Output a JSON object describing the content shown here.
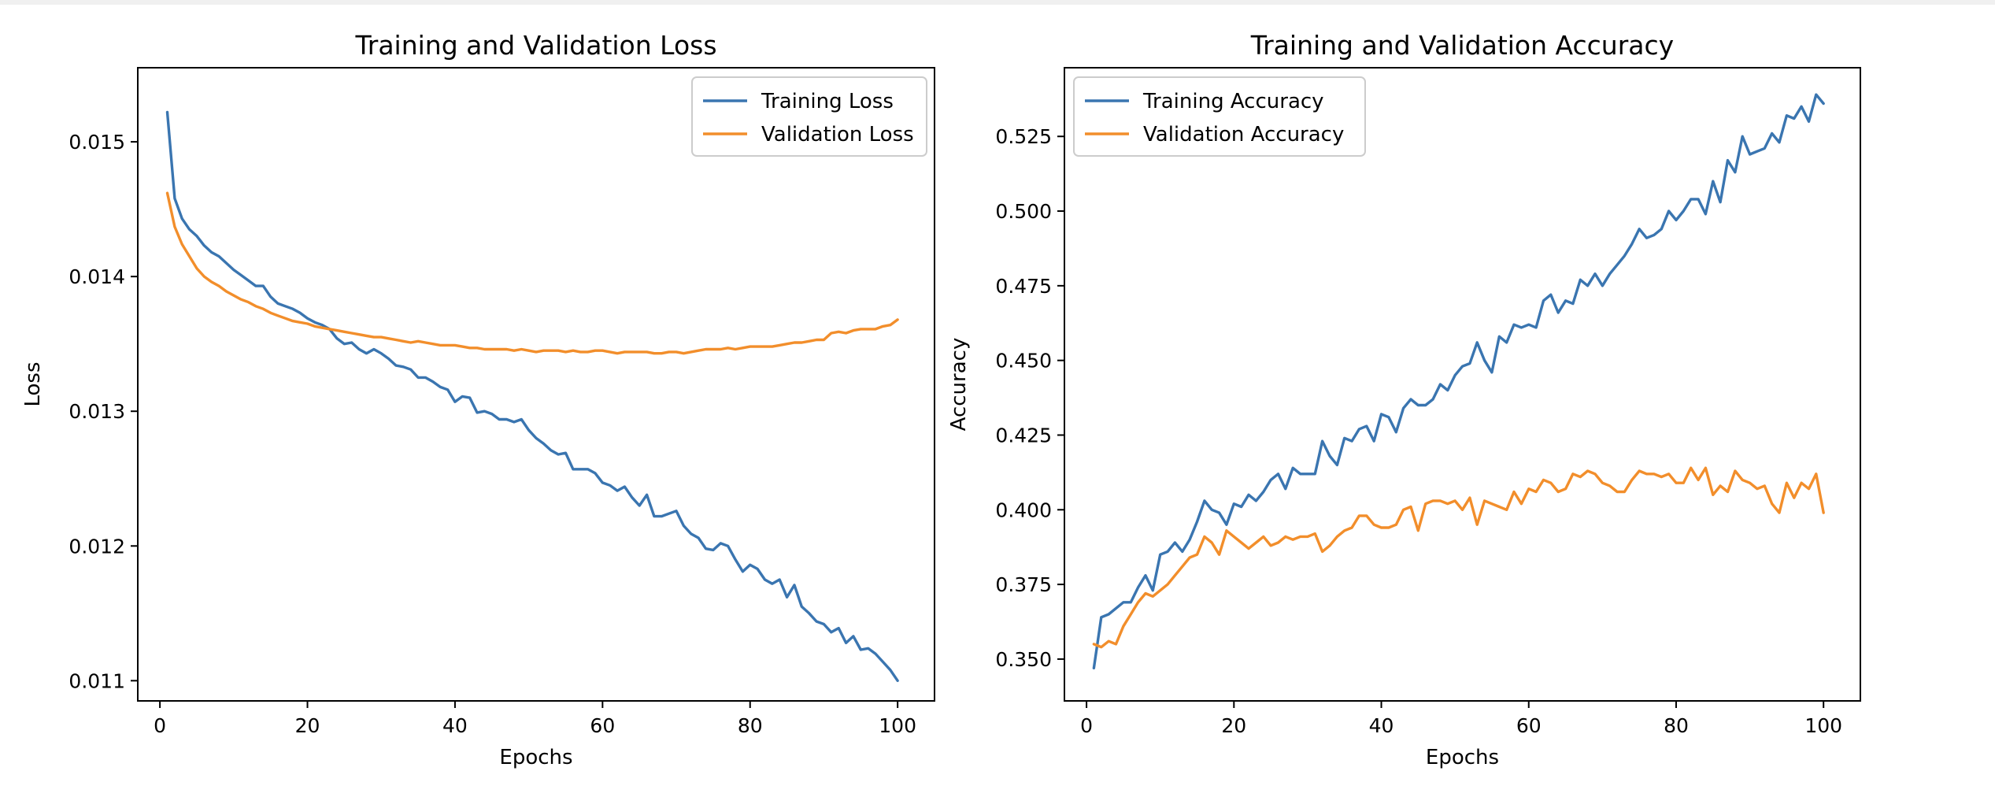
{
  "colors": {
    "training": "#3a75b0",
    "validation": "#f28e2b"
  },
  "chart_data": [
    {
      "type": "line",
      "title": "Training and Validation Loss",
      "xlabel": "Epochs",
      "ylabel": "Loss",
      "xlim": [
        -3,
        105
      ],
      "ylim": [
        0.01085,
        0.01555
      ],
      "xticks": [
        0,
        20,
        40,
        60,
        80,
        100
      ],
      "xtick_labels": [
        "0",
        "20",
        "40",
        "60",
        "80",
        "100"
      ],
      "yticks": [
        0.011,
        0.012,
        0.013,
        0.014,
        0.015
      ],
      "ytick_labels": [
        "0.011",
        "0.012",
        "0.013",
        "0.014",
        "0.015"
      ],
      "legend_position": "upper right",
      "grid": false,
      "x": [
        1,
        2,
        3,
        4,
        5,
        6,
        7,
        8,
        9,
        10,
        11,
        12,
        13,
        14,
        15,
        16,
        17,
        18,
        19,
        20,
        21,
        22,
        23,
        24,
        25,
        26,
        27,
        28,
        29,
        30,
        31,
        32,
        33,
        34,
        35,
        36,
        37,
        38,
        39,
        40,
        41,
        42,
        43,
        44,
        45,
        46,
        47,
        48,
        49,
        50,
        51,
        52,
        53,
        54,
        55,
        56,
        57,
        58,
        59,
        60,
        61,
        62,
        63,
        64,
        65,
        66,
        67,
        68,
        69,
        70,
        71,
        72,
        73,
        74,
        75,
        76,
        77,
        78,
        79,
        80,
        81,
        82,
        83,
        84,
        85,
        86,
        87,
        88,
        89,
        90,
        91,
        92,
        93,
        94,
        95,
        96,
        97,
        98,
        99,
        100
      ],
      "series": [
        {
          "name": "Training Loss",
          "color": "#3a75b0",
          "values": [
            0.01522,
            0.01458,
            0.01443,
            0.01435,
            0.0143,
            0.01423,
            0.01418,
            0.01415,
            0.0141,
            0.01405,
            0.01401,
            0.01397,
            0.01393,
            0.01393,
            0.01385,
            0.0138,
            0.01378,
            0.01376,
            0.01373,
            0.01369,
            0.01366,
            0.01364,
            0.01361,
            0.01354,
            0.0135,
            0.01351,
            0.01346,
            0.01343,
            0.01346,
            0.01343,
            0.01339,
            0.01334,
            0.01333,
            0.01331,
            0.01325,
            0.01325,
            0.01322,
            0.01318,
            0.01316,
            0.01307,
            0.01311,
            0.0131,
            0.01299,
            0.013,
            0.01298,
            0.01294,
            0.01294,
            0.01292,
            0.01294,
            0.01286,
            0.0128,
            0.01276,
            0.01271,
            0.01268,
            0.01269,
            0.01257,
            0.01257,
            0.01257,
            0.01254,
            0.01247,
            0.01245,
            0.01241,
            0.01244,
            0.01236,
            0.0123,
            0.01238,
            0.01222,
            0.01222,
            0.01224,
            0.01226,
            0.01215,
            0.01209,
            0.01206,
            0.01198,
            0.01197,
            0.01202,
            0.012,
            0.0119,
            0.01181,
            0.01186,
            0.01183,
            0.01175,
            0.01172,
            0.01175,
            0.01162,
            0.01171,
            0.01155,
            0.0115,
            0.01144,
            0.01142,
            0.01136,
            0.01139,
            0.01128,
            0.01133,
            0.01123,
            0.01124,
            0.0112,
            0.01114,
            0.01108,
            0.011
          ]
        },
        {
          "name": "Validation Loss",
          "color": "#f28e2b",
          "values": [
            0.01462,
            0.01437,
            0.01424,
            0.01415,
            0.01406,
            0.014,
            0.01396,
            0.01393,
            0.01389,
            0.01386,
            0.01383,
            0.01381,
            0.01378,
            0.01376,
            0.01373,
            0.01371,
            0.01369,
            0.01367,
            0.01366,
            0.01365,
            0.01363,
            0.01362,
            0.01361,
            0.0136,
            0.01359,
            0.01358,
            0.01357,
            0.01356,
            0.01355,
            0.01355,
            0.01354,
            0.01353,
            0.01352,
            0.01351,
            0.01352,
            0.01351,
            0.0135,
            0.01349,
            0.01349,
            0.01349,
            0.01348,
            0.01347,
            0.01347,
            0.01346,
            0.01346,
            0.01346,
            0.01346,
            0.01345,
            0.01346,
            0.01345,
            0.01344,
            0.01345,
            0.01345,
            0.01345,
            0.01344,
            0.01345,
            0.01344,
            0.01344,
            0.01345,
            0.01345,
            0.01344,
            0.01343,
            0.01344,
            0.01344,
            0.01344,
            0.01344,
            0.01343,
            0.01343,
            0.01344,
            0.01344,
            0.01343,
            0.01344,
            0.01345,
            0.01346,
            0.01346,
            0.01346,
            0.01347,
            0.01346,
            0.01347,
            0.01348,
            0.01348,
            0.01348,
            0.01348,
            0.01349,
            0.0135,
            0.01351,
            0.01351,
            0.01352,
            0.01353,
            0.01353,
            0.01358,
            0.01359,
            0.01358,
            0.0136,
            0.01361,
            0.01361,
            0.01361,
            0.01363,
            0.01364,
            0.01368
          ]
        }
      ]
    },
    {
      "type": "line",
      "title": "Training and Validation Accuracy",
      "xlabel": "Epochs",
      "ylabel": "Accuracy",
      "xlim": [
        -3,
        105
      ],
      "ylim": [
        0.336,
        0.548
      ],
      "xticks": [
        0,
        20,
        40,
        60,
        80,
        100
      ],
      "xtick_labels": [
        "0",
        "20",
        "40",
        "60",
        "80",
        "100"
      ],
      "yticks": [
        0.35,
        0.375,
        0.4,
        0.425,
        0.45,
        0.475,
        0.5,
        0.525
      ],
      "ytick_labels": [
        "0.350",
        "0.375",
        "0.400",
        "0.425",
        "0.450",
        "0.475",
        "0.500",
        "0.525"
      ],
      "legend_position": "upper left",
      "grid": false,
      "x": [
        1,
        2,
        3,
        4,
        5,
        6,
        7,
        8,
        9,
        10,
        11,
        12,
        13,
        14,
        15,
        16,
        17,
        18,
        19,
        20,
        21,
        22,
        23,
        24,
        25,
        26,
        27,
        28,
        29,
        30,
        31,
        32,
        33,
        34,
        35,
        36,
        37,
        38,
        39,
        40,
        41,
        42,
        43,
        44,
        45,
        46,
        47,
        48,
        49,
        50,
        51,
        52,
        53,
        54,
        55,
        56,
        57,
        58,
        59,
        60,
        61,
        62,
        63,
        64,
        65,
        66,
        67,
        68,
        69,
        70,
        71,
        72,
        73,
        74,
        75,
        76,
        77,
        78,
        79,
        80,
        81,
        82,
        83,
        84,
        85,
        86,
        87,
        88,
        89,
        90,
        91,
        92,
        93,
        94,
        95,
        96,
        97,
        98,
        99,
        100
      ],
      "series": [
        {
          "name": "Training Accuracy",
          "color": "#3a75b0",
          "values": [
            0.347,
            0.364,
            0.365,
            0.367,
            0.369,
            0.369,
            0.374,
            0.378,
            0.373,
            0.385,
            0.386,
            0.389,
            0.386,
            0.39,
            0.396,
            0.403,
            0.4,
            0.399,
            0.395,
            0.402,
            0.401,
            0.405,
            0.403,
            0.406,
            0.41,
            0.412,
            0.407,
            0.414,
            0.412,
            0.412,
            0.412,
            0.423,
            0.418,
            0.415,
            0.424,
            0.423,
            0.427,
            0.428,
            0.423,
            0.432,
            0.431,
            0.426,
            0.434,
            0.437,
            0.435,
            0.435,
            0.437,
            0.442,
            0.44,
            0.445,
            0.448,
            0.449,
            0.456,
            0.45,
            0.446,
            0.458,
            0.456,
            0.462,
            0.461,
            0.462,
            0.461,
            0.47,
            0.472,
            0.466,
            0.47,
            0.469,
            0.477,
            0.475,
            0.479,
            0.475,
            0.479,
            0.482,
            0.485,
            0.489,
            0.494,
            0.491,
            0.492,
            0.494,
            0.5,
            0.497,
            0.5,
            0.504,
            0.504,
            0.499,
            0.51,
            0.503,
            0.517,
            0.513,
            0.525,
            0.519,
            0.52,
            0.521,
            0.526,
            0.523,
            0.532,
            0.531,
            0.535,
            0.53,
            0.539,
            0.536
          ]
        },
        {
          "name": "Validation Accuracy",
          "color": "#f28e2b",
          "values": [
            0.355,
            0.354,
            0.356,
            0.355,
            0.361,
            0.365,
            0.369,
            0.372,
            0.371,
            0.373,
            0.375,
            0.378,
            0.381,
            0.384,
            0.385,
            0.391,
            0.389,
            0.385,
            0.393,
            0.391,
            0.389,
            0.387,
            0.389,
            0.391,
            0.388,
            0.389,
            0.391,
            0.39,
            0.391,
            0.391,
            0.392,
            0.386,
            0.388,
            0.391,
            0.393,
            0.394,
            0.398,
            0.398,
            0.395,
            0.394,
            0.394,
            0.395,
            0.4,
            0.401,
            0.393,
            0.402,
            0.403,
            0.403,
            0.402,
            0.403,
            0.4,
            0.404,
            0.395,
            0.403,
            0.402,
            0.401,
            0.4,
            0.406,
            0.402,
            0.407,
            0.406,
            0.41,
            0.409,
            0.406,
            0.407,
            0.412,
            0.411,
            0.413,
            0.412,
            0.409,
            0.408,
            0.406,
            0.406,
            0.41,
            0.413,
            0.412,
            0.412,
            0.411,
            0.412,
            0.409,
            0.409,
            0.414,
            0.41,
            0.414,
            0.405,
            0.408,
            0.406,
            0.413,
            0.41,
            0.409,
            0.407,
            0.408,
            0.402,
            0.399,
            0.409,
            0.404,
            0.409,
            0.407,
            0.412,
            0.399
          ]
        }
      ]
    }
  ]
}
